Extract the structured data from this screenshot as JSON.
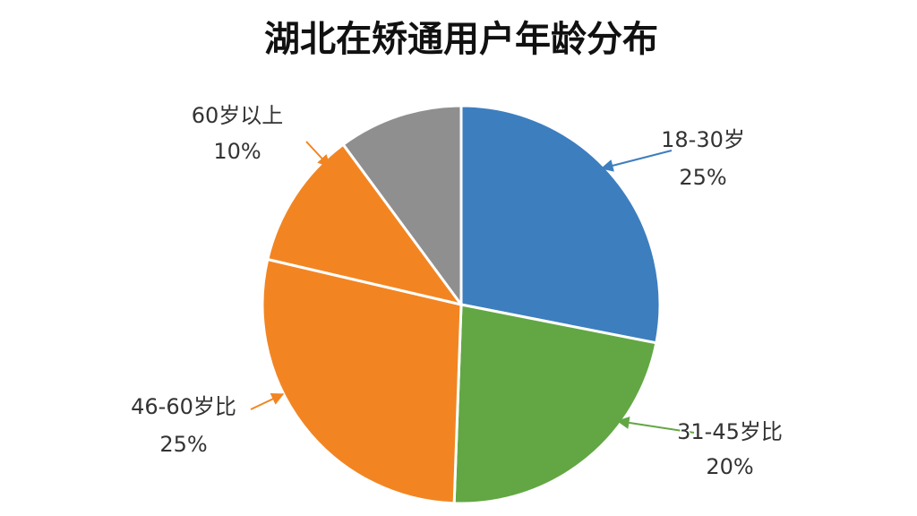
{
  "chart_data": {
    "type": "pie",
    "title": "湖北在矫通用户年龄分布",
    "categories": [
      "18-30岁",
      "31-45岁比",
      "46-60岁比",
      "60岁以上",
      null
    ],
    "values": [
      25,
      20,
      25,
      10,
      9
    ],
    "value_labels": [
      "25%",
      "20%",
      "25%",
      "10%",
      null
    ],
    "colors": [
      "#3d7ebf",
      "#62a744",
      "#f28522",
      "#f28522",
      "#8f8f8f"
    ]
  }
}
